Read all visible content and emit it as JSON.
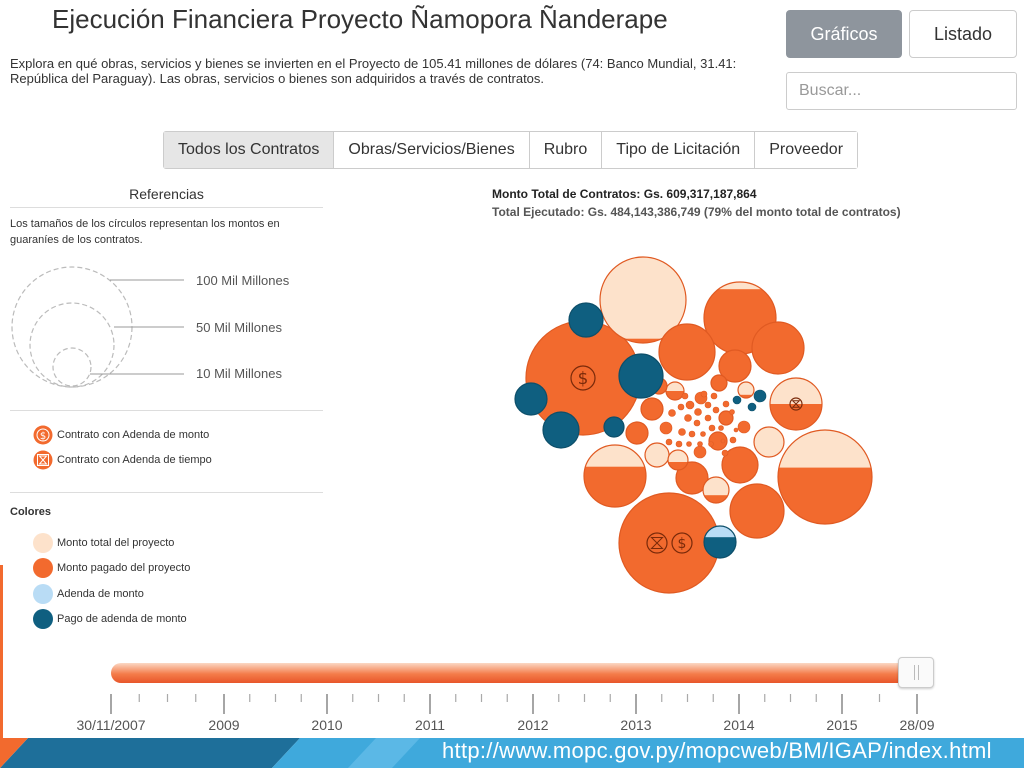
{
  "header": {
    "title": "Ejecución Financiera Proyecto Ñamopora Ñanderape",
    "description": "Explora en qué obras, servicios y bienes se invierten en el Proyecto de 105.41 millones de dólares (74: Banco Mundial, 31.41: República del Paraguay). Las obras, servicios o bienes son adquiridos a través de contratos.",
    "view_buttons": [
      "Gráficos",
      "Listado"
    ],
    "search_placeholder": "Buscar..."
  },
  "tabs": [
    "Todos los Contratos",
    "Obras/Servicios/Bienes",
    "Rubro",
    "Tipo de Licitación",
    "Proveedor"
  ],
  "references": {
    "title": "Referencias",
    "note": "Los tamaños de los círculos representan los montos en guaraníes de los contratos.",
    "sizes": [
      "100 Mil Millones",
      "50 Mil Millones",
      "10 Mil Millones"
    ],
    "icons": [
      {
        "label": "Contrato con Adenda de monto",
        "icon": "dollar-icon"
      },
      {
        "label": "Contrato con Adenda de tiempo",
        "icon": "hourglass-icon"
      }
    ],
    "colors_title": "Colores",
    "colors": [
      {
        "label": "Monto total del proyecto",
        "color": "#fde2cb"
      },
      {
        "label": "Monto pagado del proyecto",
        "color": "#f26a2e"
      },
      {
        "label": "Adenda de monto",
        "color": "#b9dcf5"
      },
      {
        "label": "Pago de adenda de monto",
        "color": "#0f5f80"
      }
    ]
  },
  "summary": {
    "monto_total": "Monto Total de Contratos: Gs. 609,317,187,864",
    "total_ejecutado": "Total Ejecutado: Gs. 484,143,386,749 (79% del monto total de contratos)"
  },
  "timeline": {
    "ticks": [
      "30/11/2007",
      "2009",
      "2010",
      "2011",
      "2012",
      "2013",
      "2014",
      "2015",
      "28/09"
    ],
    "position": 1.0
  },
  "footer": {
    "url": "http://www.mopc.gov.py/mopcweb/BM/IGAP/index.html"
  }
}
